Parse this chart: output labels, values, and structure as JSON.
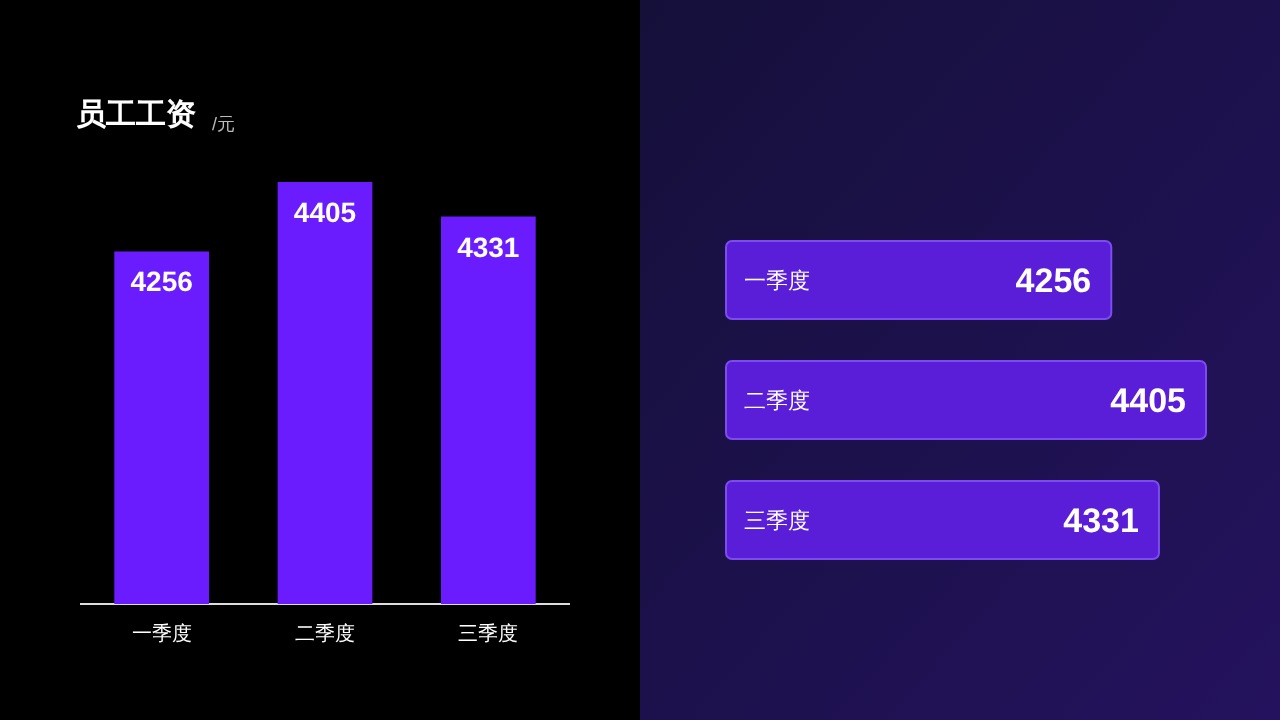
{
  "chart_data": [
    {
      "type": "bar",
      "title": "员工工资",
      "subtitle": "/元",
      "categories": [
        "一季度",
        "二季度",
        "三季度"
      ],
      "values": [
        4256,
        4405,
        4331
      ],
      "color": "#6a1cff",
      "ylim": [
        3500,
        4405
      ],
      "data_labels": true,
      "tick_labels": "x"
    },
    {
      "type": "bar",
      "orientation": "horizontal",
      "categories": [
        "一季度",
        "二季度",
        "三季度"
      ],
      "values": [
        4256,
        4405,
        4331
      ],
      "color": "#5b1ed8",
      "xlim": [
        3650,
        4405
      ],
      "data_labels": true,
      "tick_labels": "y"
    }
  ]
}
